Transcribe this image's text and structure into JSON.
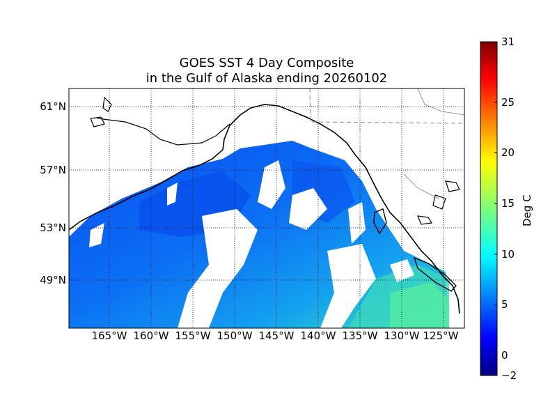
{
  "title": {
    "line1": "GOES SST 4 Day Composite",
    "line2": "in the Gulf of Alaska ending 20260102"
  },
  "map": {
    "lat_labels": [
      "61°N",
      "57°N",
      "53°N",
      "49°N"
    ],
    "lon_labels": [
      "165°W",
      "160°W",
      "155°W",
      "150°W",
      "145°W",
      "140°W",
      "135°W",
      "130°W",
      "125°W"
    ],
    "gridlines": "dotted",
    "missing_data_color": "#ffffff",
    "land_color": "#ffffff",
    "coastline_color": "#000000",
    "border_color": "#999999"
  },
  "colorbar": {
    "label": "Deg C",
    "min": -2,
    "max": 31,
    "ticks": [
      "31",
      "25",
      "20",
      "15",
      "10",
      "5",
      "0",
      "−2"
    ],
    "colormap": "jet"
  }
}
